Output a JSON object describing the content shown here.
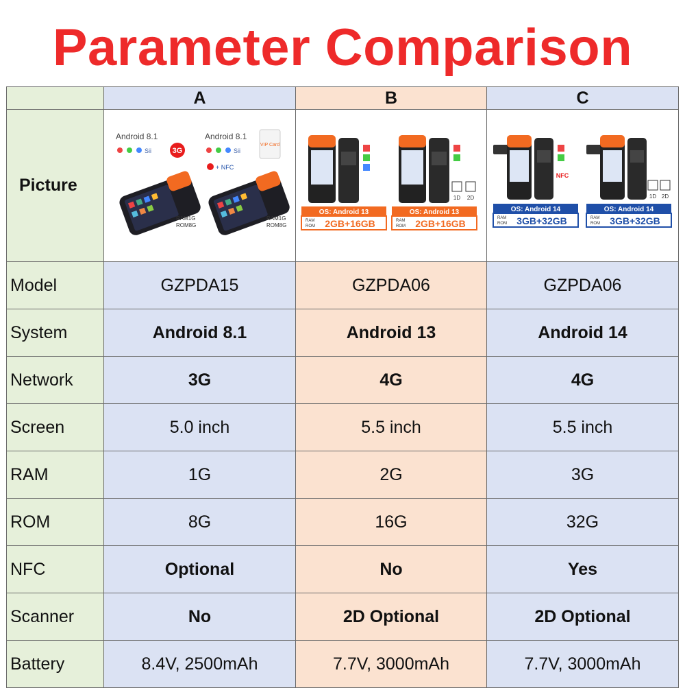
{
  "title": "Parameter Comparison",
  "columns": [
    "A",
    "B",
    "C"
  ],
  "picture_label": "Picture",
  "pictures": {
    "a": {
      "os1": "Android 8.1",
      "os2": "Android 8.1",
      "badge": "3G",
      "nfc": "+ NFC",
      "card": "VIP Card",
      "ram1": "RAM1G",
      "rom1": "ROM8G",
      "ram2": "RAM1G",
      "rom2": "ROM8G"
    },
    "b": {
      "os": "OS: Android 13",
      "spec": "2GB+16GB",
      "ram": "RAM",
      "rom": "ROM",
      "code1": "1D",
      "code2": "2D"
    },
    "c": {
      "os": "OS: Android 14",
      "spec": "3GB+32GB",
      "ram": "RAM",
      "rom": "ROM",
      "nfc": "NFC",
      "code1": "1D",
      "code2": "2D"
    }
  },
  "colors": {
    "title": "#ee2a2a",
    "highlight": "#e81c1c",
    "label_bg": "#e6f0da",
    "col_ac_bg": "#dbe2f3",
    "col_b_bg": "#fbe2d0",
    "orange": "#f26a21",
    "blue": "#1f4fa8"
  },
  "rows": [
    {
      "label": "Model",
      "a": "GZPDA15",
      "b": "GZPDA06",
      "c": "GZPDA06",
      "highlight": false
    },
    {
      "label": "System",
      "a": "Android 8.1",
      "b": "Android 13",
      "c": "Android 14",
      "highlight": true
    },
    {
      "label": "Network",
      "a": "3G",
      "b": "4G",
      "c": "4G",
      "highlight": true
    },
    {
      "label": "Screen",
      "a": "5.0 inch",
      "b": "5.5 inch",
      "c": "5.5 inch",
      "highlight": false
    },
    {
      "label": "RAM",
      "a": "1G",
      "b": "2G",
      "c": "3G",
      "highlight": false
    },
    {
      "label": "ROM",
      "a": "8G",
      "b": "16G",
      "c": "32G",
      "highlight": false
    },
    {
      "label": "NFC",
      "a": "Optional",
      "b": "No",
      "c": "Yes",
      "highlight": true
    },
    {
      "label": "Scanner",
      "a": "No",
      "b": "2D Optional",
      "c": "2D Optional",
      "highlight": true
    },
    {
      "label": "Battery",
      "a": "8.4V, 2500mAh",
      "b": "7.7V, 3000mAh",
      "c": "7.7V, 3000mAh",
      "highlight": false
    }
  ]
}
